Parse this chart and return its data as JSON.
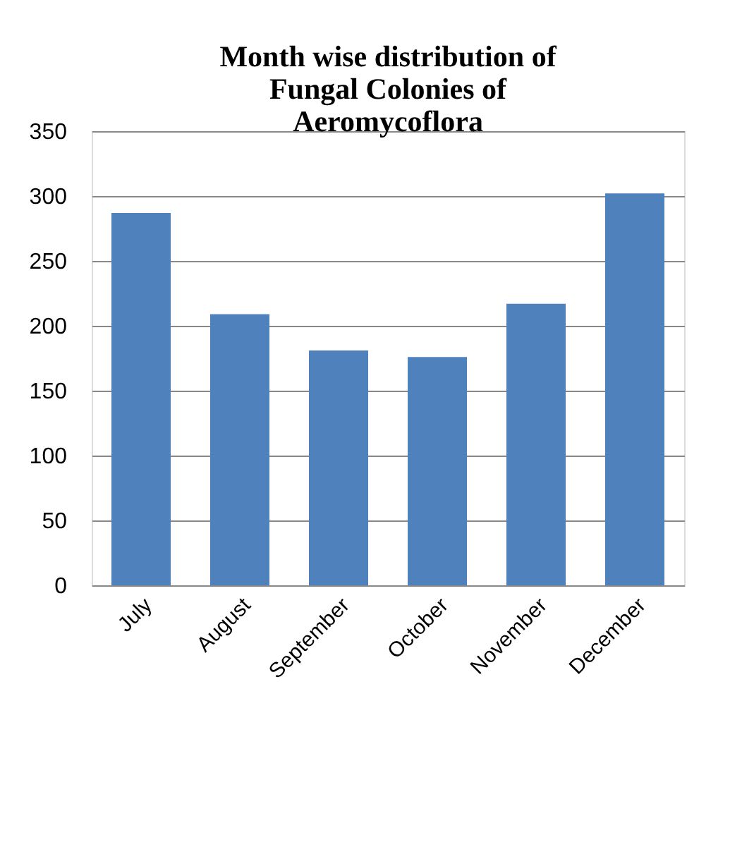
{
  "chart_data": {
    "type": "bar",
    "title": "Month wise distribution of Fungal Colonies of Aeromycoflora",
    "categories": [
      "July",
      "August",
      "September",
      "October",
      "November",
      "December"
    ],
    "values": [
      287,
      209,
      181,
      176,
      217,
      302
    ],
    "color": "#4f81bd",
    "ylim": [
      0,
      350
    ],
    "yticks": [
      0,
      50,
      100,
      150,
      200,
      250,
      300,
      350
    ],
    "grid": "y"
  }
}
